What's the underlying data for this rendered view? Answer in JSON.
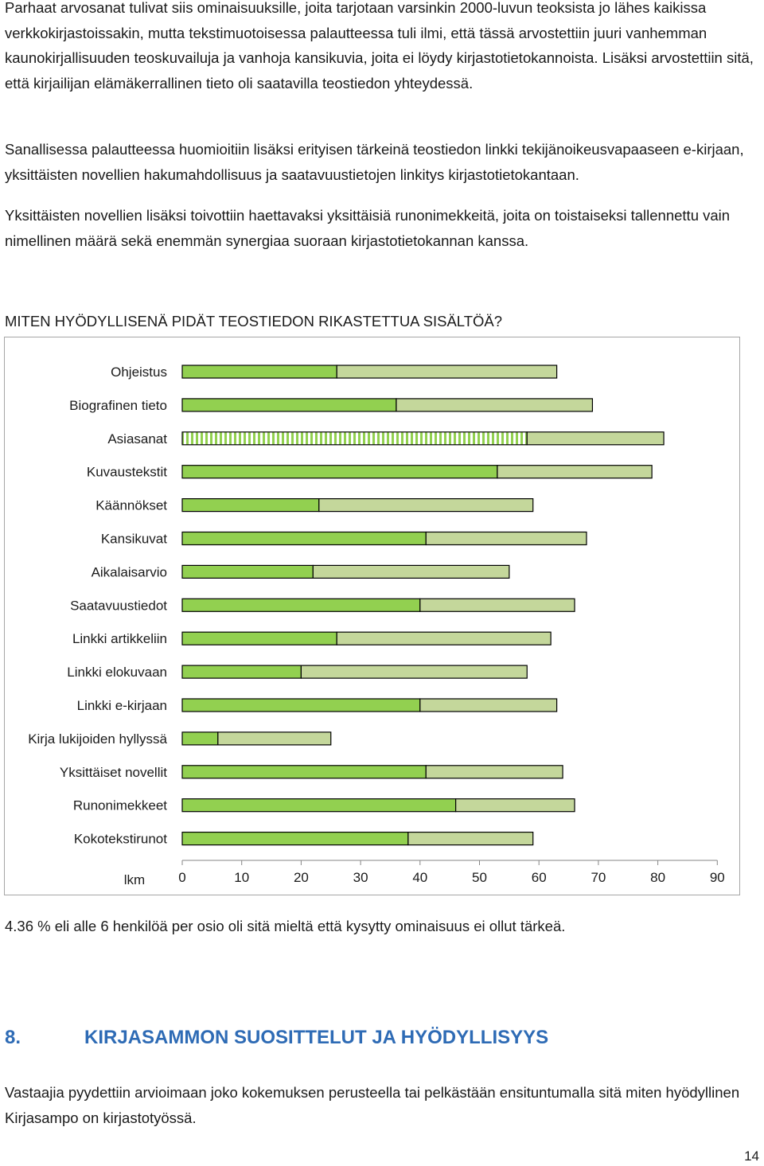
{
  "paragraphs": {
    "p1": "Parhaat arvosanat tulivat siis ominaisuuksille, joita tarjotaan varsinkin 2000-luvun teoksista jo lähes kaikissa verkkokirjastoissakin, mutta tekstimuotoisessa palautteessa tuli ilmi, että tässä arvostettiin juuri vanhemman kaunokirjallisuuden teoskuvailuja ja vanhoja kansikuvia, joita ei löydy kirjastotietokannoista. Lisäksi arvostettiin sitä, että kirjailijan elämäkerrallinen tieto oli saatavilla teostiedon yhteydessä.",
    "p2": "Sanallisessa palautteessa huomioitiin lisäksi erityisen tärkeinä teostiedon linkki tekijänoikeusvapaaseen e-kirjaan, yksittäisten novellien hakumahdollisuus ja saatavuustietojen linkitys kirjastotietokantaan.",
    "p3": "Yksittäisten novellien lisäksi toivottiin haettavaksi yksittäisiä runonimekkeitä, joita on toistaiseksi tallennettu vain nimellinen määrä sekä enemmän synergiaa suoraan kirjastotietokannan kanssa."
  },
  "chart_heading": "MITEN HYÖDYLLISENÄ PIDÄT TEOSTIEDON RIKASTETTUA SISÄLTÖÄ?",
  "chart_data": {
    "type": "bar",
    "orientation": "horizontal",
    "stacked": true,
    "categories": [
      "Ohjeistus",
      "Biografinen tieto",
      "Asiasanat",
      "Kuvaustekstit",
      "Käännökset",
      "Kansikuvat",
      "Aikalaisarvio",
      "Saatavuustiedot",
      "Linkki artikkeliin",
      "Linkki elokuvaan",
      "Linkki e-kirjaan",
      "Kirja lukijoiden hyllyssä",
      "Yksittäiset novellit",
      "Runonimekkeet",
      "Kokotekstirunot"
    ],
    "series": [
      {
        "values": [
          26,
          36,
          58,
          53,
          23,
          41,
          22,
          40,
          26,
          20,
          40,
          6,
          41,
          46,
          38
        ],
        "color": "#92d050"
      },
      {
        "values": [
          37,
          33,
          23,
          26,
          36,
          27,
          33,
          26,
          36,
          38,
          23,
          19,
          23,
          20,
          21
        ],
        "color": "#c4d79b"
      }
    ],
    "xlabel": "lkm",
    "xlim": [
      0,
      90
    ],
    "xticks": [
      0,
      10,
      20,
      30,
      40,
      50,
      60,
      70,
      80,
      90
    ],
    "grid": false,
    "patterned_category": "Asiasanat"
  },
  "note": "4.36 % eli alle 6 henkilöä per osio oli sitä mieltä että kysytty ominaisuus ei ollut tärkeä.",
  "section": {
    "number": "8.",
    "title": "KIRJASAMMON SUOSITTELUT JA HYÖDYLLISYYS"
  },
  "paragraph4": "Vastaajia pyydettiin arvioimaan joko kokemuksen perusteella tai pelkästään ensituntumalla sitä miten hyödyllinen Kirjasampo on kirjastotyössä.",
  "page_number": "14"
}
